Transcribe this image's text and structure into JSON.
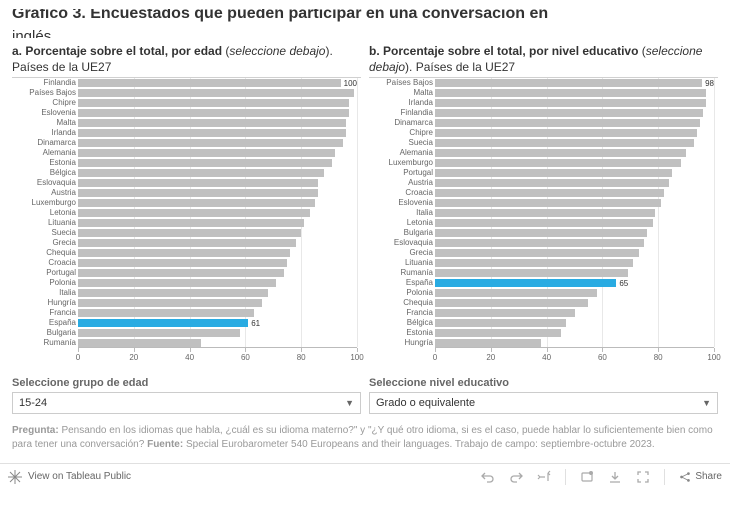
{
  "title_line1": "Gráfico 3. Encuestados que pueden participar en una conversación en",
  "title_line2": "inglés",
  "chart_a": {
    "title_bold": "a. Porcentaje sobre el total, por edad",
    "title_rest": " (",
    "title_italic": "seleccione debajo",
    "title_tail": "). Países de la UE27",
    "type": "bar_horizontal",
    "xlim": [
      0,
      100
    ],
    "xticks": [
      0,
      20,
      40,
      60,
      80,
      100
    ],
    "bar_color_default": "#c0c0c0",
    "bar_color_highlight": "#29abe2",
    "background": "#ffffff",
    "grid_color": "#e8e8e8",
    "label_fontsize": 8,
    "highlight_country": "España",
    "max_label_value": 100,
    "rows": [
      {
        "label": "Finlandia",
        "value": 100
      },
      {
        "label": "Países Bajos",
        "value": 99
      },
      {
        "label": "Chipre",
        "value": 97
      },
      {
        "label": "Eslovenia",
        "value": 97
      },
      {
        "label": "Malta",
        "value": 96
      },
      {
        "label": "Irlanda",
        "value": 96
      },
      {
        "label": "Dinamarca",
        "value": 95
      },
      {
        "label": "Alemania",
        "value": 92
      },
      {
        "label": "Estonia",
        "value": 91
      },
      {
        "label": "Bélgica",
        "value": 88
      },
      {
        "label": "Eslovaquia",
        "value": 86
      },
      {
        "label": "Austria",
        "value": 86
      },
      {
        "label": "Luxemburgo",
        "value": 85
      },
      {
        "label": "Letonia",
        "value": 83
      },
      {
        "label": "Lituania",
        "value": 81
      },
      {
        "label": "Suecia",
        "value": 80
      },
      {
        "label": "Grecia",
        "value": 78
      },
      {
        "label": "Chequia",
        "value": 76
      },
      {
        "label": "Croacia",
        "value": 75
      },
      {
        "label": "Portugal",
        "value": 74
      },
      {
        "label": "Polonia",
        "value": 71
      },
      {
        "label": "Italia",
        "value": 68
      },
      {
        "label": "Hungría",
        "value": 66
      },
      {
        "label": "Francia",
        "value": 63
      },
      {
        "label": "España",
        "value": 61,
        "show_value": true
      },
      {
        "label": "Bulgaria",
        "value": 58
      },
      {
        "label": "Rumanía",
        "value": 44
      }
    ]
  },
  "chart_b": {
    "title_bold": "b. Porcentaje sobre el total, por nivel educativo",
    "title_rest": " (",
    "title_italic": "seleccione debajo",
    "title_tail": "). Países de la UE27",
    "type": "bar_horizontal",
    "xlim": [
      0,
      100
    ],
    "xticks": [
      0,
      20,
      40,
      60,
      80,
      100
    ],
    "bar_color_default": "#c0c0c0",
    "bar_color_highlight": "#29abe2",
    "background": "#ffffff",
    "grid_color": "#e8e8e8",
    "label_fontsize": 8,
    "highlight_country": "España",
    "max_label_value": 98,
    "rows": [
      {
        "label": "Países Bajos",
        "value": 98
      },
      {
        "label": "Malta",
        "value": 97
      },
      {
        "label": "Irlanda",
        "value": 97
      },
      {
        "label": "Finlandia",
        "value": 96
      },
      {
        "label": "Dinamarca",
        "value": 95
      },
      {
        "label": "Chipre",
        "value": 94
      },
      {
        "label": "Suecia",
        "value": 93
      },
      {
        "label": "Alemania",
        "value": 90
      },
      {
        "label": "Luxemburgo",
        "value": 88
      },
      {
        "label": "Portugal",
        "value": 85
      },
      {
        "label": "Austria",
        "value": 84
      },
      {
        "label": "Croacia",
        "value": 82
      },
      {
        "label": "Eslovenia",
        "value": 81
      },
      {
        "label": "Italia",
        "value": 79
      },
      {
        "label": "Letonia",
        "value": 78
      },
      {
        "label": "Bulgaria",
        "value": 76
      },
      {
        "label": "Eslovaquia",
        "value": 75
      },
      {
        "label": "Grecia",
        "value": 73
      },
      {
        "label": "Lituania",
        "value": 71
      },
      {
        "label": "Rumanía",
        "value": 69
      },
      {
        "label": "España",
        "value": 65,
        "show_value": true
      },
      {
        "label": "Polonia",
        "value": 58
      },
      {
        "label": "Chequia",
        "value": 55
      },
      {
        "label": "Francia",
        "value": 50
      },
      {
        "label": "Bélgica",
        "value": 47
      },
      {
        "label": "Estonia",
        "value": 45
      },
      {
        "label": "Hungría",
        "value": 38
      }
    ]
  },
  "selector_a": {
    "label": "Seleccione grupo de edad",
    "value": "15-24"
  },
  "selector_b": {
    "label": "Seleccione nivel educativo",
    "value": "Grado o equivalente"
  },
  "footnote": {
    "pregunta_label": "Pregunta:",
    "pregunta_text": " Pensando en los idiomas que habla, ¿cuál es su idioma materno?\" y \"¿Y qué otro idioma, si es el caso, puede hablar lo suficientemente bien como para tener una conversación? ",
    "fuente_label": "Fuente:",
    "fuente_text": " Special Eurobarometer 540 Europeans and their languages. Trabajo de campo: septiembre-octubre 2023."
  },
  "footer": {
    "view_text": "View on Tableau Public",
    "share_text": "Share"
  }
}
